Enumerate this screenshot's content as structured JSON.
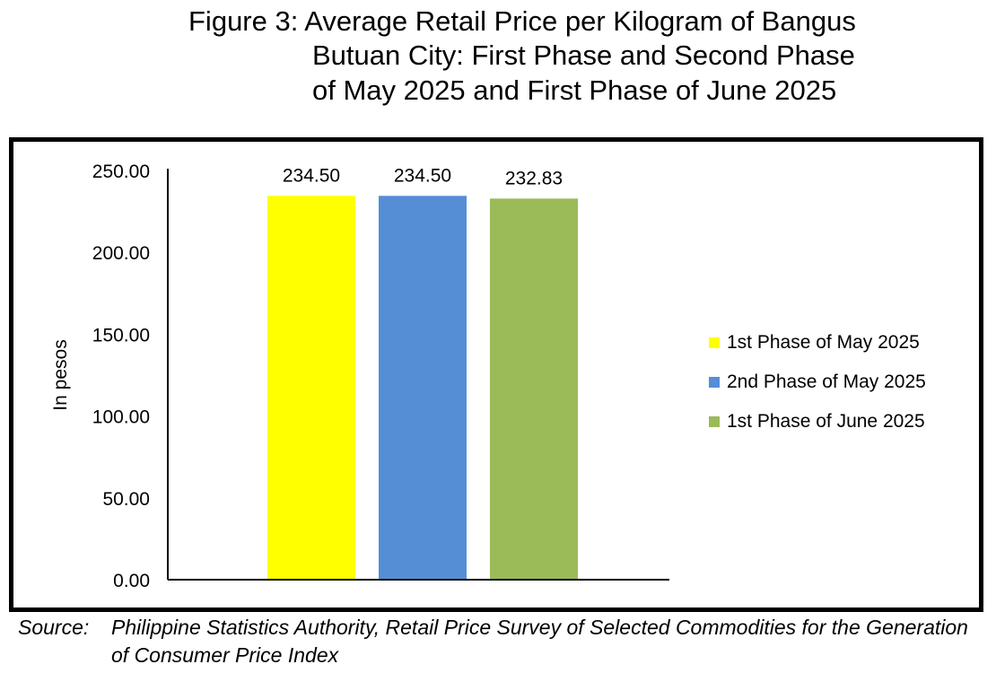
{
  "chart_data": {
    "type": "bar",
    "title_lines": [
      "Figure 3: Average Retail Price per Kilogram of Bangus",
      "Butuan City: First Phase and Second Phase",
      "of May 2025 and First Phase of June 2025"
    ],
    "xlabel": "",
    "ylabel": "In pesos",
    "ylim": [
      0,
      250
    ],
    "yticks": [
      "0.00",
      "50.00",
      "100.00",
      "150.00",
      "200.00",
      "250.00"
    ],
    "grid": false,
    "legend_position": "right",
    "series": [
      {
        "name": "1st Phase of May 2025",
        "value": 234.5,
        "label": "234.50",
        "color": "#FFFF00"
      },
      {
        "name": "2nd Phase of May 2025",
        "value": 234.5,
        "label": "234.50",
        "color": "#558ED5"
      },
      {
        "name": "1st Phase of June 2025",
        "value": 232.83,
        "label": "232.83",
        "color": "#9BBB59"
      }
    ]
  },
  "source": {
    "label": "Source:",
    "text": "Philippine Statistics Authority, Retail Price Survey of Selected Commodities for the Generation of Consumer Price Index"
  }
}
